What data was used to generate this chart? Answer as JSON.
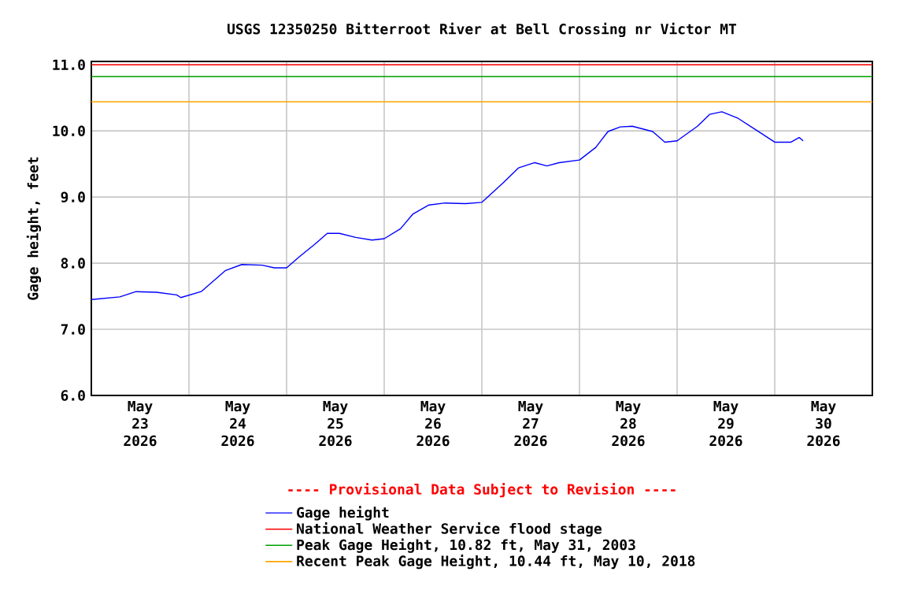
{
  "chart_data": {
    "type": "line",
    "title": "USGS 12350250 Bitterroot River at Bell Crossing nr Victor MT",
    "ylabel": "Gage height, feet",
    "annotations": [
      "---- Provisional Data Subject to Revision ----"
    ],
    "xlim": [
      "2026-05-23",
      "2026-05-31"
    ],
    "xticks": [
      {
        "value": "2026-05-23T12:00",
        "label": "May 23 2026"
      },
      {
        "value": "2026-05-24T12:00",
        "label": "May 24 2026"
      },
      {
        "value": "2026-05-25T12:00",
        "label": "May 25 2026"
      },
      {
        "value": "2026-05-26T12:00",
        "label": "May 26 2026"
      },
      {
        "value": "2026-05-27T12:00",
        "label": "May 27 2026"
      },
      {
        "value": "2026-05-28T12:00",
        "label": "May 28 2026"
      },
      {
        "value": "2026-05-29T12:00",
        "label": "May 29 2026"
      },
      {
        "value": "2026-05-30T12:00",
        "label": "May 30 2026"
      },
      {
        "value": "2026-05-24",
        "label": null
      },
      {
        "value": "2026-05-25",
        "label": null
      },
      {
        "value": "2026-05-26",
        "label": null
      },
      {
        "value": "2026-05-27",
        "label": null
      },
      {
        "value": "2026-05-28",
        "label": null
      },
      {
        "value": "2026-05-29",
        "label": null
      },
      {
        "value": "2026-05-30",
        "label": null
      }
    ],
    "ylim": [
      6.0,
      11.05
    ],
    "yticks": [
      {
        "value": 6,
        "label": "6.0"
      },
      {
        "value": 7,
        "label": "7.0"
      },
      {
        "value": 8,
        "label": "8.0"
      },
      {
        "value": 9,
        "label": "9.0"
      },
      {
        "value": 10,
        "label": "10.0"
      },
      {
        "value": 11,
        "label": "11.0"
      }
    ],
    "grid": true,
    "legend": "bottom",
    "series": [
      {
        "name": "Gage height",
        "color": "#0000ff",
        "x": [
          "2026-05-23T00:00",
          "2026-05-23T07:00",
          "2026-05-23T11:00",
          "2026-05-23T16:00",
          "2026-05-23T21:00",
          "2026-05-23T22:00",
          "2026-05-24T03:00",
          "2026-05-24T09:00",
          "2026-05-24T13:00",
          "2026-05-24T18:00",
          "2026-05-24T21:00",
          "2026-05-25T00:00",
          "2026-05-25T03:00",
          "2026-05-25T07:00",
          "2026-05-25T10:00",
          "2026-05-25T13:00",
          "2026-05-25T17:00",
          "2026-05-25T21:00",
          "2026-05-26T00:00",
          "2026-05-26T04:00",
          "2026-05-26T07:00",
          "2026-05-26T11:00",
          "2026-05-26T15:00",
          "2026-05-26T20:00",
          "2026-05-27T00:00",
          "2026-05-27T05:00",
          "2026-05-27T09:00",
          "2026-05-27T13:00",
          "2026-05-27T16:00",
          "2026-05-27T19:00",
          "2026-05-28T00:00",
          "2026-05-28T04:00",
          "2026-05-28T07:00",
          "2026-05-28T10:00",
          "2026-05-28T13:00",
          "2026-05-28T18:00",
          "2026-05-28T21:00",
          "2026-05-29T00:00",
          "2026-05-29T05:00",
          "2026-05-29T08:00",
          "2026-05-29T11:00",
          "2026-05-29T15:00",
          "2026-05-29T19:00",
          "2026-05-30T00:00",
          "2026-05-30T04:00",
          "2026-05-30T06:00",
          "2026-05-30T07:00"
        ],
        "values": [
          7.45,
          7.49,
          7.57,
          7.56,
          7.52,
          7.48,
          7.57,
          7.89,
          7.98,
          7.97,
          7.93,
          7.93,
          8.09,
          8.29,
          8.45,
          8.45,
          8.39,
          8.35,
          8.37,
          8.52,
          8.74,
          8.88,
          8.91,
          8.9,
          8.92,
          9.2,
          9.44,
          9.52,
          9.47,
          9.52,
          9.56,
          9.75,
          9.99,
          10.06,
          10.07,
          9.99,
          9.83,
          9.85,
          10.07,
          10.25,
          10.29,
          10.19,
          10.03,
          9.83,
          9.83,
          9.9,
          9.85
        ]
      }
    ],
    "ref_lines": [
      {
        "axis": "y",
        "value": 11.0,
        "label": "National Weather Service flood stage",
        "color": "#ff0000"
      },
      {
        "axis": "y",
        "value": 10.82,
        "label": "Peak Gage Height, 10.82 ft, May 31, 2003",
        "color": "#00a000"
      },
      {
        "axis": "y",
        "value": 10.44,
        "label": "Recent Peak Gage Height, 10.44 ft, May 10, 2018",
        "color": "#ffa500"
      }
    ]
  }
}
